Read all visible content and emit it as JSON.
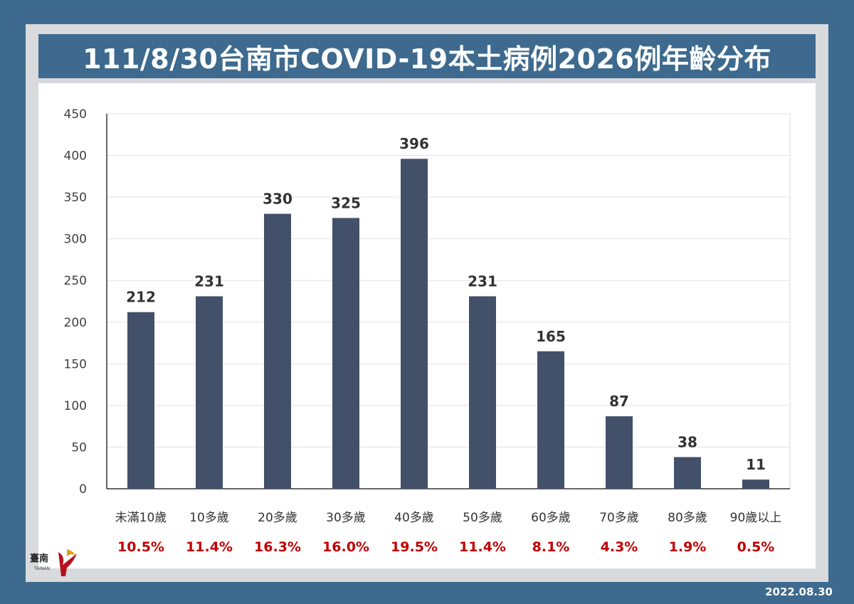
{
  "title": "111/8/30台南市COVID-19本土病例2026例年齡分布",
  "footer_date": "2022.08.30",
  "logo": {
    "text": "臺南",
    "sub": "TAINAN"
  },
  "colors": {
    "bar": "#43506a",
    "pct": "#c00000",
    "frame": "#3d6a8e"
  },
  "chart_data": {
    "type": "bar",
    "title": "111/8/30台南市COVID-19本土病例2026例年齡分布",
    "categories": [
      "未滿10歲",
      "10多歲",
      "20多歲",
      "30多歲",
      "40多歲",
      "50多歲",
      "60多歲",
      "70多歲",
      "80多歲",
      "90歲以上"
    ],
    "values": [
      212,
      231,
      330,
      325,
      396,
      231,
      165,
      87,
      38,
      11
    ],
    "percentages": [
      "10.5%",
      "11.4%",
      "16.3%",
      "16.0%",
      "19.5%",
      "11.4%",
      "8.1%",
      "4.3%",
      "1.9%",
      "0.5%"
    ],
    "yticks": [
      0,
      50,
      100,
      150,
      200,
      250,
      300,
      350,
      400,
      450
    ],
    "ylim": [
      0,
      450
    ],
    "xlabel": "",
    "ylabel": "",
    "grid": true,
    "legend": "none"
  }
}
